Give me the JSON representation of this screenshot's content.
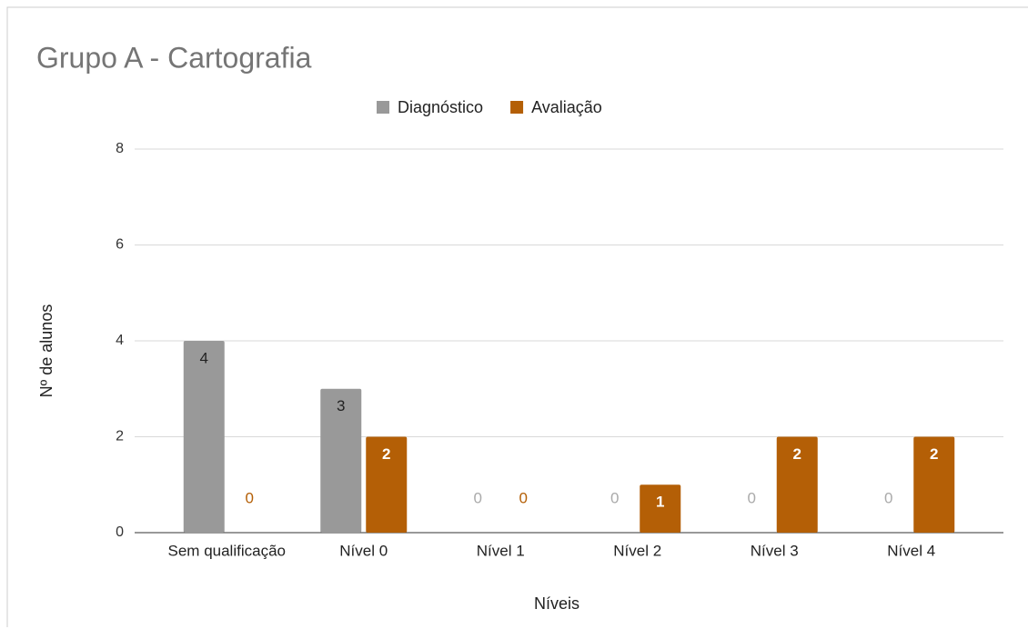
{
  "chart_data": {
    "type": "bar",
    "title": "Grupo A - Cartografia",
    "categories": [
      "Sem qualificação",
      "Nível 0",
      "Nível 1",
      "Nível 2",
      "Nível 3",
      "Nível 4"
    ],
    "series": [
      {
        "name": "Diagnóstico",
        "color": "#999999",
        "values": [
          4,
          3,
          0,
          0,
          0,
          0
        ]
      },
      {
        "name": "Avaliação",
        "color": "#b45f06",
        "values": [
          0,
          2,
          0,
          1,
          2,
          2
        ]
      }
    ],
    "xlabel": "Níveis",
    "ylabel": "Nº de alunos",
    "ylim": [
      0,
      8
    ],
    "yticks": [
      0,
      2,
      4,
      6,
      8
    ],
    "grid": true,
    "legend": "top"
  }
}
